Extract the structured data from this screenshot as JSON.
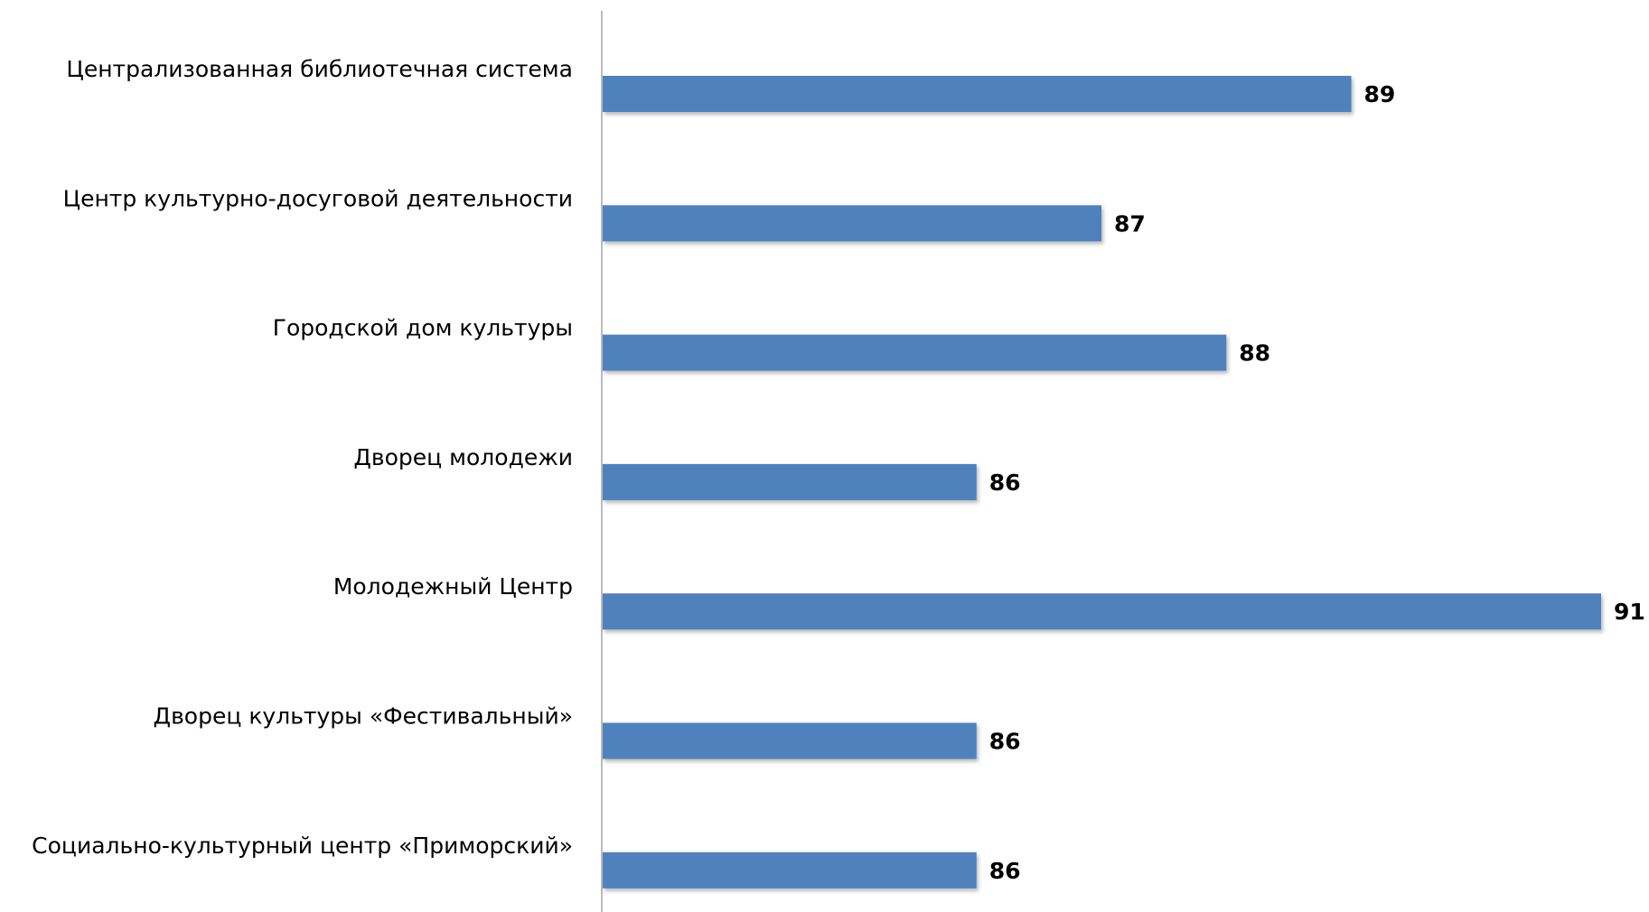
{
  "chart_data": {
    "type": "bar",
    "orientation": "horizontal",
    "title": "",
    "xlabel": "",
    "ylabel": "",
    "categories": [
      "Централизованная библиотечная система",
      "Центр культурно-досуговой деятельности",
      "Городской дом культуры",
      "Дворец молодежи",
      "Молодежный Центр",
      "Дворец культуры «Фестивальный»",
      "Социально-культурный центр «Приморский»"
    ],
    "values": [
      89,
      87,
      88,
      86,
      91,
      86,
      86
    ],
    "xlim": [
      83,
      91
    ],
    "grid": false,
    "legend": "none",
    "data_labels": true,
    "bar_color": "#4F81BD",
    "axis_color": "#A6A6A6"
  }
}
